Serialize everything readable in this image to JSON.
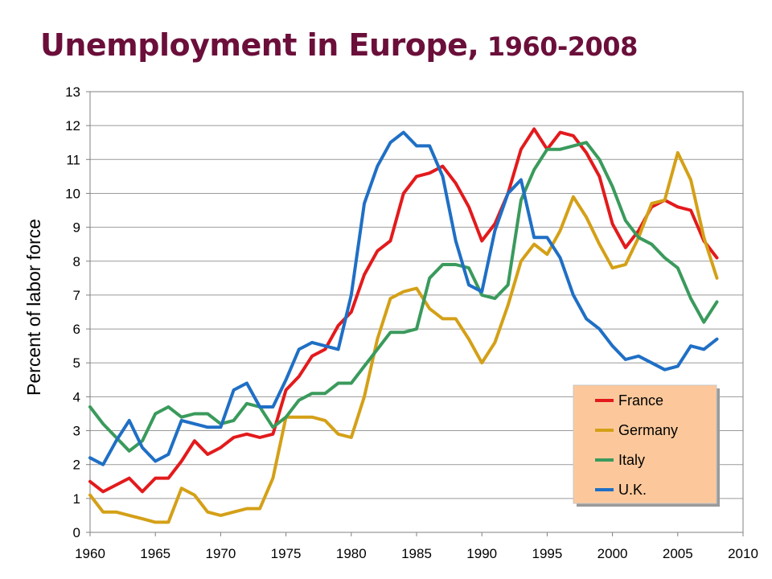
{
  "title": {
    "main": "Unemployment in Europe,",
    "years": " 1960-2008"
  },
  "colors": {
    "title": "#6b0f3a",
    "France": "#e31a1c",
    "Germany": "#d4a017",
    "Italy": "#3a9a5c",
    "U.K.": "#1f6fc5",
    "legend_bg": "#fcc89b"
  },
  "chart_data": {
    "type": "line",
    "title": "Unemployment in Europe, 1960-2008",
    "xlabel": "",
    "ylabel": "Percent of labor force",
    "xlim": [
      1960,
      2010
    ],
    "ylim": [
      0,
      13
    ],
    "xticks": [
      1960,
      1965,
      1970,
      1975,
      1980,
      1985,
      1990,
      1995,
      2000,
      2005,
      2010
    ],
    "yticks": [
      0,
      1,
      2,
      3,
      4,
      5,
      6,
      7,
      8,
      9,
      10,
      11,
      12,
      13
    ],
    "grid": "horizontal",
    "legend_position": "bottom-right",
    "x": [
      1960,
      1961,
      1962,
      1963,
      1964,
      1965,
      1966,
      1967,
      1968,
      1969,
      1970,
      1971,
      1972,
      1973,
      1974,
      1975,
      1976,
      1977,
      1978,
      1979,
      1980,
      1981,
      1982,
      1983,
      1984,
      1985,
      1986,
      1987,
      1988,
      1989,
      1990,
      1991,
      1992,
      1993,
      1994,
      1995,
      1996,
      1997,
      1998,
      1999,
      2000,
      2001,
      2002,
      2003,
      2004,
      2005,
      2006,
      2007,
      2008
    ],
    "series": [
      {
        "name": "France",
        "values": [
          1.5,
          1.2,
          1.4,
          1.6,
          1.2,
          1.6,
          1.6,
          2.1,
          2.7,
          2.3,
          2.5,
          2.8,
          2.9,
          2.8,
          2.9,
          4.2,
          4.6,
          5.2,
          5.4,
          6.1,
          6.5,
          7.6,
          8.3,
          8.6,
          10.0,
          10.5,
          10.6,
          10.8,
          10.3,
          9.6,
          8.6,
          9.1,
          10.0,
          11.3,
          11.9,
          11.3,
          11.8,
          11.7,
          11.2,
          10.5,
          9.1,
          8.4,
          8.9,
          9.6,
          9.8,
          9.6,
          9.5,
          8.6,
          8.1
        ]
      },
      {
        "name": "Germany",
        "values": [
          1.1,
          0.6,
          0.6,
          0.5,
          0.4,
          0.3,
          0.3,
          1.3,
          1.1,
          0.6,
          0.5,
          0.6,
          0.7,
          0.7,
          1.6,
          3.4,
          3.4,
          3.4,
          3.3,
          2.9,
          2.8,
          4.0,
          5.7,
          6.9,
          7.1,
          7.2,
          6.6,
          6.3,
          6.3,
          5.7,
          5.0,
          5.6,
          6.7,
          8.0,
          8.5,
          8.2,
          8.9,
          9.9,
          9.3,
          8.5,
          7.8,
          7.9,
          8.7,
          9.7,
          9.8,
          11.2,
          10.4,
          8.7,
          7.5
        ]
      },
      {
        "name": "Italy",
        "values": [
          3.7,
          3.2,
          2.8,
          2.4,
          2.7,
          3.5,
          3.7,
          3.4,
          3.5,
          3.5,
          3.2,
          3.3,
          3.8,
          3.7,
          3.1,
          3.4,
          3.9,
          4.1,
          4.1,
          4.4,
          4.4,
          4.9,
          5.4,
          5.9,
          5.9,
          6.0,
          7.5,
          7.9,
          7.9,
          7.8,
          7.0,
          6.9,
          7.3,
          9.8,
          10.7,
          11.3,
          11.3,
          11.4,
          11.5,
          11.0,
          10.2,
          9.2,
          8.7,
          8.5,
          8.1,
          7.8,
          6.9,
          6.2,
          6.8
        ]
      },
      {
        "name": "U.K.",
        "values": [
          2.2,
          2.0,
          2.7,
          3.3,
          2.5,
          2.1,
          2.3,
          3.3,
          3.2,
          3.1,
          3.1,
          4.2,
          4.4,
          3.7,
          3.7,
          4.5,
          5.4,
          5.6,
          5.5,
          5.4,
          7.0,
          9.7,
          10.8,
          11.5,
          11.8,
          11.4,
          11.4,
          10.5,
          8.6,
          7.3,
          7.1,
          8.9,
          10.0,
          10.4,
          8.7,
          8.7,
          8.1,
          7.0,
          6.3,
          6.0,
          5.5,
          5.1,
          5.2,
          5.0,
          4.8,
          4.9,
          5.5,
          5.4,
          5.7
        ]
      }
    ]
  }
}
